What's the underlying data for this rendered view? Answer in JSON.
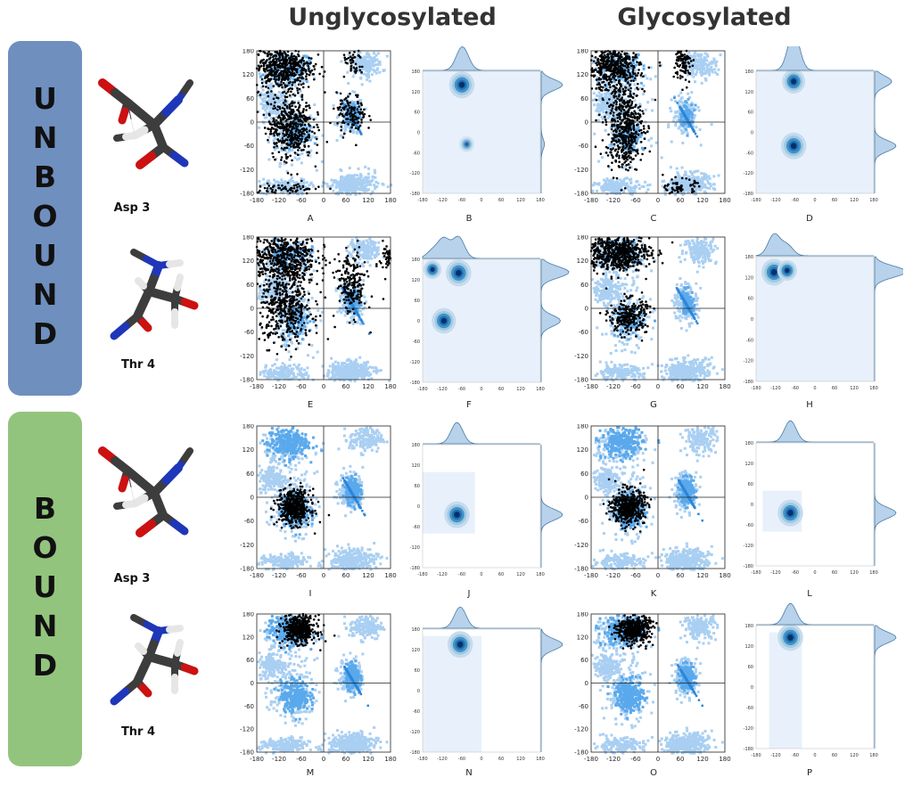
{
  "columns": {
    "left": "Unglycosylated",
    "right": "Glycosylated"
  },
  "bands": {
    "unbound": {
      "letters": [
        "U",
        "N",
        "B",
        "O",
        "U",
        "N",
        "D"
      ],
      "color": "#6f8fbe"
    },
    "bound": {
      "letters": [
        "B",
        "O",
        "U",
        "N",
        "D"
      ],
      "color": "#93c47d"
    }
  },
  "molecules": [
    {
      "label": "Asp 3",
      "type": "asp"
    },
    {
      "label": "Thr 4",
      "type": "thr"
    },
    {
      "label": "Asp 3",
      "type": "asp"
    },
    {
      "label": "Thr 4",
      "type": "thr"
    }
  ],
  "rama_ticks": {
    "x": [
      "-180",
      "-120",
      "-60",
      "0",
      "60",
      "120",
      "180"
    ],
    "y": [
      "180",
      "120",
      "60",
      "0",
      "-60",
      "-120",
      "-180"
    ]
  },
  "kde_ticks": {
    "x": [
      "-180",
      "-120",
      "-60",
      "0",
      "60",
      "120",
      "180"
    ],
    "y": [
      "180",
      "120",
      "60",
      "0",
      "-60",
      "-120",
      "-180"
    ]
  },
  "colors": {
    "light_blue": "#a9cff2",
    "mid_blue": "#5aa9ec",
    "dark_blue": "#2e86d8",
    "black": "#000000",
    "kde_bg": "#e8f1fb",
    "kde_core": "#08306b",
    "marginal": "#b7d2ea",
    "marginal_line": "#4a7ba7"
  },
  "panels": [
    {
      "letter": "A",
      "kind": "rama",
      "state": "unbound",
      "residue": "Asp 3",
      "glyco": false,
      "black": "asp-unbound-ung"
    },
    {
      "letter": "B",
      "kind": "kde",
      "state": "unbound",
      "residue": "Asp 3",
      "glyco": false,
      "peaks": [
        {
          "phi": -60,
          "psi": 140,
          "w": 1.0
        },
        {
          "phi": -45,
          "psi": -35,
          "w": 0.15
        }
      ],
      "bg_rect": [
        -180,
        180,
        -180,
        180
      ]
    },
    {
      "letter": "C",
      "kind": "rama",
      "state": "unbound",
      "residue": "Asp 3",
      "glyco": true,
      "black": "asp-unbound-gly"
    },
    {
      "letter": "D",
      "kind": "kde",
      "state": "unbound",
      "residue": "Asp 3",
      "glyco": true,
      "peaks": [
        {
          "phi": -65,
          "psi": 150,
          "w": 0.8
        },
        {
          "phi": -65,
          "psi": -40,
          "w": 1.0
        }
      ],
      "bg_rect": [
        -180,
        180,
        -180,
        180
      ]
    },
    {
      "letter": "E",
      "kind": "rama",
      "state": "unbound",
      "residue": "Thr 4",
      "glyco": false,
      "black": "thr-unbound-ung"
    },
    {
      "letter": "F",
      "kind": "kde",
      "state": "unbound",
      "residue": "Thr 4",
      "glyco": false,
      "peaks": [
        {
          "phi": -70,
          "psi": 140,
          "w": 1.0
        },
        {
          "phi": -150,
          "psi": 150,
          "w": 0.35
        },
        {
          "phi": -115,
          "psi": 0,
          "w": 0.9
        }
      ],
      "bg_rect": [
        -180,
        180,
        -180,
        180
      ]
    },
    {
      "letter": "G",
      "kind": "rama",
      "state": "unbound",
      "residue": "Thr 4",
      "glyco": true,
      "black": "thr-unbound-gly"
    },
    {
      "letter": "H",
      "kind": "kde",
      "state": "unbound",
      "residue": "Thr 4",
      "glyco": true,
      "peaks": [
        {
          "phi": -125,
          "psi": 135,
          "w": 1.0
        },
        {
          "phi": -85,
          "psi": 140,
          "w": 0.5
        }
      ],
      "bg_rect": [
        -180,
        180,
        -180,
        180
      ]
    },
    {
      "letter": "I",
      "kind": "rama",
      "state": "bound",
      "residue": "Asp 3",
      "glyco": false,
      "black": "asp-bound"
    },
    {
      "letter": "J",
      "kind": "kde",
      "state": "bound",
      "residue": "Asp 3",
      "glyco": false,
      "peaks": [
        {
          "phi": -75,
          "psi": -25,
          "w": 1.0
        }
      ],
      "bg_rect": [
        -180,
        -20,
        -80,
        100
      ]
    },
    {
      "letter": "K",
      "kind": "rama",
      "state": "bound",
      "residue": "Asp 3",
      "glyco": true,
      "black": "asp-bound"
    },
    {
      "letter": "L",
      "kind": "kde",
      "state": "bound",
      "residue": "Asp 3",
      "glyco": true,
      "peaks": [
        {
          "phi": -75,
          "psi": -25,
          "w": 1.0
        }
      ],
      "bg_rect": [
        -160,
        -40,
        -80,
        40
      ]
    },
    {
      "letter": "M",
      "kind": "rama",
      "state": "bound",
      "residue": "Thr 4",
      "glyco": false,
      "black": "thr-bound"
    },
    {
      "letter": "N",
      "kind": "kde",
      "state": "bound",
      "residue": "Thr 4",
      "glyco": false,
      "peaks": [
        {
          "phi": -65,
          "psi": 135,
          "w": 1.0
        }
      ],
      "bg_rect": [
        -180,
        0,
        -180,
        160
      ]
    },
    {
      "letter": "O",
      "kind": "rama",
      "state": "bound",
      "residue": "Thr 4",
      "glyco": true,
      "black": "thr-bound"
    },
    {
      "letter": "P",
      "kind": "kde",
      "state": "bound",
      "residue": "Thr 4",
      "glyco": true,
      "peaks": [
        {
          "phi": -75,
          "psi": 145,
          "w": 1.0
        }
      ],
      "bg_rect": [
        -140,
        -40,
        -180,
        160
      ]
    }
  ]
}
